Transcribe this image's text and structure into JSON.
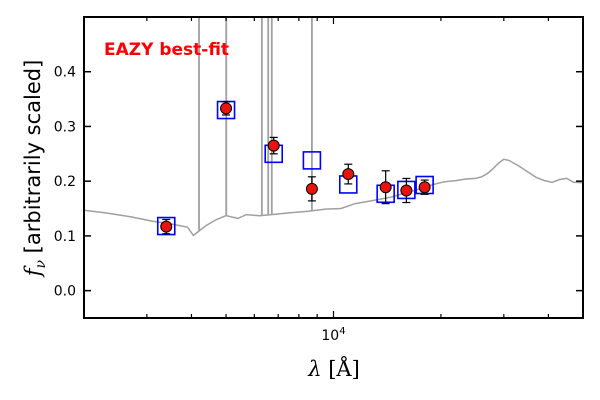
{
  "chart_data": {
    "type": "scatter",
    "title": "",
    "xlabel": "λ [Å]",
    "ylabel": "f_ν [arbitrarily scaled]",
    "xscale": "log",
    "xlim": [
      2000,
      50000
    ],
    "ylim": [
      -0.05,
      0.5
    ],
    "grid": false,
    "xticks": [
      {
        "value": 10000,
        "label": "10^4"
      }
    ],
    "yticks": [
      {
        "value": 0.0,
        "label": "0.0"
      },
      {
        "value": 0.1,
        "label": "0.1"
      },
      {
        "value": 0.2,
        "label": "0.2"
      },
      {
        "value": 0.3,
        "label": "0.3"
      },
      {
        "value": 0.4,
        "label": "0.4"
      }
    ],
    "annotation": {
      "text": "EAZY best-fit",
      "color": "#ff0000"
    },
    "colors": {
      "template": "#a0a0a0",
      "model_box": "#0000ff",
      "observed_fill": "#e8130f",
      "observed_edge": "#000000",
      "errorbar": "#000000"
    },
    "series": [
      {
        "kind": "template_curve",
        "x": [
          2000,
          2300,
          2700,
          3100,
          3500,
          3900,
          4050,
          4200,
          4400,
          4700,
          5000,
          5400,
          5700,
          6200,
          6700,
          7500,
          8500,
          9500,
          10500,
          11500,
          12500,
          13500,
          14500,
          16000,
          17500,
          19000,
          20500,
          22000,
          23500,
          25000,
          26000,
          27000,
          28000,
          29000,
          30000,
          31000,
          33000,
          35000,
          37000,
          39000,
          41000,
          43000,
          45000,
          47000,
          50000
        ],
        "y": [
          0.147,
          0.142,
          0.135,
          0.127,
          0.122,
          0.116,
          0.101,
          0.109,
          0.119,
          0.13,
          0.137,
          0.132,
          0.139,
          0.137,
          0.139,
          0.142,
          0.145,
          0.149,
          0.15,
          0.159,
          0.163,
          0.167,
          0.171,
          0.179,
          0.186,
          0.194,
          0.199,
          0.201,
          0.204,
          0.205,
          0.208,
          0.214,
          0.223,
          0.233,
          0.24,
          0.238,
          0.228,
          0.217,
          0.207,
          0.201,
          0.198,
          0.203,
          0.205,
          0.198,
          0.197
        ]
      },
      {
        "kind": "emission_lines",
        "x": [
          4200,
          5007,
          6300,
          6563,
          6716,
          8700
        ],
        "y_top": [
          0.5,
          0.5,
          0.5,
          0.5,
          0.5,
          0.5
        ]
      },
      {
        "kind": "model_photometry",
        "x": [
          3400,
          5000,
          6800,
          8700,
          11000,
          14000,
          16000,
          18000
        ],
        "y": [
          0.118,
          0.33,
          0.25,
          0.238,
          0.194,
          0.177,
          0.184,
          0.193
        ]
      },
      {
        "kind": "observed_photometry",
        "x": [
          3400,
          5000,
          6800,
          8700,
          11000,
          14000,
          16000,
          18000
        ],
        "y": [
          0.117,
          0.333,
          0.265,
          0.186,
          0.213,
          0.189,
          0.183,
          0.189
        ],
        "yerr": [
          0.013,
          0.012,
          0.015,
          0.022,
          0.018,
          0.03,
          0.022,
          0.013
        ]
      }
    ]
  }
}
